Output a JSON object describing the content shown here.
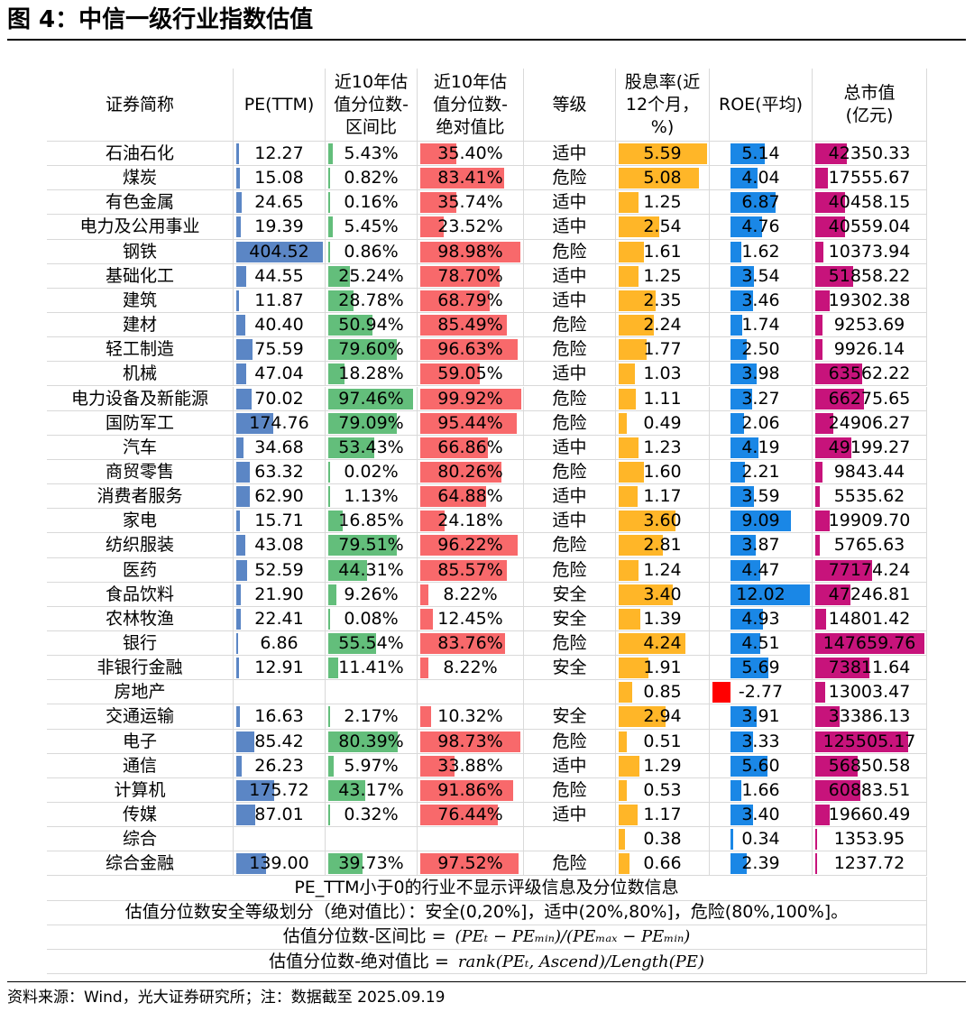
{
  "title": "图 4：中信一级行业指数估值",
  "source": "资料来源：Wind，光大证券研究所；注：数据截至 2025.09.19",
  "colors": {
    "pe": "#5b86c5",
    "pct_range": "#63be7b",
    "pct_abs": "#f8696b",
    "dividend": "#ffb628",
    "roe": "#1a87e6",
    "roe_neg": "#ff0000",
    "mktcap": "#c7137b"
  },
  "headers": [
    "证券简称",
    "PE(TTM)",
    "近10年估值分位数-区间比",
    "近10年估值分位数-绝对值比",
    "等级",
    "股息率(近12个月，%)",
    "ROE(平均)",
    "总市值(亿元)"
  ],
  "rows": [
    {
      "name": "石油石化",
      "pe": "12.27",
      "pe_v": 12.27,
      "r1": "5.43%",
      "r1_v": 5.43,
      "r2": "35.40%",
      "r2_v": 35.4,
      "grade": "适中",
      "div": "5.59",
      "div_v": 5.59,
      "roe": "5.14",
      "roe_v": 5.14,
      "cap": "42350.33",
      "cap_v": 42350.33
    },
    {
      "name": "煤炭",
      "pe": "15.08",
      "pe_v": 15.08,
      "r1": "0.82%",
      "r1_v": 0.82,
      "r2": "83.41%",
      "r2_v": 83.41,
      "grade": "危险",
      "div": "5.08",
      "div_v": 5.08,
      "roe": "4.04",
      "roe_v": 4.04,
      "cap": "17555.67",
      "cap_v": 17555.67
    },
    {
      "name": "有色金属",
      "pe": "24.65",
      "pe_v": 24.65,
      "r1": "0.16%",
      "r1_v": 0.16,
      "r2": "35.74%",
      "r2_v": 35.74,
      "grade": "适中",
      "div": "1.25",
      "div_v": 1.25,
      "roe": "6.87",
      "roe_v": 6.87,
      "cap": "40458.15",
      "cap_v": 40458.15
    },
    {
      "name": "电力及公用事业",
      "pe": "19.39",
      "pe_v": 19.39,
      "r1": "5.45%",
      "r1_v": 5.45,
      "r2": "23.52%",
      "r2_v": 23.52,
      "grade": "适中",
      "div": "2.54",
      "div_v": 2.54,
      "roe": "4.76",
      "roe_v": 4.76,
      "cap": "40559.04",
      "cap_v": 40559.04
    },
    {
      "name": "钢铁",
      "pe": "404.52",
      "pe_v": 404.52,
      "r1": "0.86%",
      "r1_v": 0.86,
      "r2": "98.98%",
      "r2_v": 98.98,
      "grade": "危险",
      "div": "1.61",
      "div_v": 1.61,
      "roe": "1.62",
      "roe_v": 1.62,
      "cap": "10373.94",
      "cap_v": 10373.94
    },
    {
      "name": "基础化工",
      "pe": "44.55",
      "pe_v": 44.55,
      "r1": "25.24%",
      "r1_v": 25.24,
      "r2": "78.70%",
      "r2_v": 78.7,
      "grade": "适中",
      "div": "1.25",
      "div_v": 1.25,
      "roe": "3.54",
      "roe_v": 3.54,
      "cap": "51858.22",
      "cap_v": 51858.22
    },
    {
      "name": "建筑",
      "pe": "11.87",
      "pe_v": 11.87,
      "r1": "28.78%",
      "r1_v": 28.78,
      "r2": "68.79%",
      "r2_v": 68.79,
      "grade": "适中",
      "div": "2.35",
      "div_v": 2.35,
      "roe": "3.46",
      "roe_v": 3.46,
      "cap": "19302.38",
      "cap_v": 19302.38
    },
    {
      "name": "建材",
      "pe": "40.40",
      "pe_v": 40.4,
      "r1": "50.94%",
      "r1_v": 50.94,
      "r2": "85.49%",
      "r2_v": 85.49,
      "grade": "危险",
      "div": "2.24",
      "div_v": 2.24,
      "roe": "1.74",
      "roe_v": 1.74,
      "cap": "9253.69",
      "cap_v": 9253.69
    },
    {
      "name": "轻工制造",
      "pe": "75.59",
      "pe_v": 75.59,
      "r1": "79.60%",
      "r1_v": 79.6,
      "r2": "96.63%",
      "r2_v": 96.63,
      "grade": "危险",
      "div": "1.77",
      "div_v": 1.77,
      "roe": "2.50",
      "roe_v": 2.5,
      "cap": "9926.14",
      "cap_v": 9926.14
    },
    {
      "name": "机械",
      "pe": "47.04",
      "pe_v": 47.04,
      "r1": "18.28%",
      "r1_v": 18.28,
      "r2": "59.05%",
      "r2_v": 59.05,
      "grade": "适中",
      "div": "1.03",
      "div_v": 1.03,
      "roe": "3.98",
      "roe_v": 3.98,
      "cap": "63562.22",
      "cap_v": 63562.22
    },
    {
      "name": "电力设备及新能源",
      "pe": "70.02",
      "pe_v": 70.02,
      "r1": "97.46%",
      "r1_v": 97.46,
      "r2": "99.92%",
      "r2_v": 99.92,
      "grade": "危险",
      "div": "1.11",
      "div_v": 1.11,
      "roe": "3.27",
      "roe_v": 3.27,
      "cap": "66275.65",
      "cap_v": 66275.65
    },
    {
      "name": "国防军工",
      "pe": "174.76",
      "pe_v": 174.76,
      "r1": "79.09%",
      "r1_v": 79.09,
      "r2": "95.44%",
      "r2_v": 95.44,
      "grade": "危险",
      "div": "0.49",
      "div_v": 0.49,
      "roe": "2.06",
      "roe_v": 2.06,
      "cap": "24906.27",
      "cap_v": 24906.27
    },
    {
      "name": "汽车",
      "pe": "34.68",
      "pe_v": 34.68,
      "r1": "53.43%",
      "r1_v": 53.43,
      "r2": "66.86%",
      "r2_v": 66.86,
      "grade": "适中",
      "div": "1.23",
      "div_v": 1.23,
      "roe": "4.19",
      "roe_v": 4.19,
      "cap": "49199.27",
      "cap_v": 49199.27
    },
    {
      "name": "商贸零售",
      "pe": "63.32",
      "pe_v": 63.32,
      "r1": "0.02%",
      "r1_v": 0.02,
      "r2": "80.26%",
      "r2_v": 80.26,
      "grade": "危险",
      "div": "1.60",
      "div_v": 1.6,
      "roe": "2.21",
      "roe_v": 2.21,
      "cap": "9843.44",
      "cap_v": 9843.44
    },
    {
      "name": "消费者服务",
      "pe": "62.90",
      "pe_v": 62.9,
      "r1": "1.13%",
      "r1_v": 1.13,
      "r2": "64.88%",
      "r2_v": 64.88,
      "grade": "适中",
      "div": "1.17",
      "div_v": 1.17,
      "roe": "3.59",
      "roe_v": 3.59,
      "cap": "5535.62",
      "cap_v": 5535.62
    },
    {
      "name": "家电",
      "pe": "15.71",
      "pe_v": 15.71,
      "r1": "16.85%",
      "r1_v": 16.85,
      "r2": "24.18%",
      "r2_v": 24.18,
      "grade": "适中",
      "div": "3.60",
      "div_v": 3.6,
      "roe": "9.09",
      "roe_v": 9.09,
      "cap": "19909.70",
      "cap_v": 19909.7
    },
    {
      "name": "纺织服装",
      "pe": "43.08",
      "pe_v": 43.08,
      "r1": "79.51%",
      "r1_v": 79.51,
      "r2": "96.22%",
      "r2_v": 96.22,
      "grade": "危险",
      "div": "2.81",
      "div_v": 2.81,
      "roe": "3.87",
      "roe_v": 3.87,
      "cap": "5765.63",
      "cap_v": 5765.63
    },
    {
      "name": "医药",
      "pe": "52.59",
      "pe_v": 52.59,
      "r1": "44.31%",
      "r1_v": 44.31,
      "r2": "85.57%",
      "r2_v": 85.57,
      "grade": "危险",
      "div": "1.24",
      "div_v": 1.24,
      "roe": "4.47",
      "roe_v": 4.47,
      "cap": "77174.24",
      "cap_v": 77174.24
    },
    {
      "name": "食品饮料",
      "pe": "21.90",
      "pe_v": 21.9,
      "r1": "9.26%",
      "r1_v": 9.26,
      "r2": "8.22%",
      "r2_v": 8.22,
      "grade": "安全",
      "div": "3.40",
      "div_v": 3.4,
      "roe": "12.02",
      "roe_v": 12.02,
      "cap": "47246.81",
      "cap_v": 47246.81
    },
    {
      "name": "农林牧渔",
      "pe": "22.41",
      "pe_v": 22.41,
      "r1": "0.08%",
      "r1_v": 0.08,
      "r2": "12.45%",
      "r2_v": 12.45,
      "grade": "安全",
      "div": "1.39",
      "div_v": 1.39,
      "roe": "4.93",
      "roe_v": 4.93,
      "cap": "14801.42",
      "cap_v": 14801.42
    },
    {
      "name": "银行",
      "pe": "6.86",
      "pe_v": 6.86,
      "r1": "55.54%",
      "r1_v": 55.54,
      "r2": "83.76%",
      "r2_v": 83.76,
      "grade": "危险",
      "div": "4.24",
      "div_v": 4.24,
      "roe": "4.51",
      "roe_v": 4.51,
      "cap": "147659.76",
      "cap_v": 147659.76
    },
    {
      "name": "非银行金融",
      "pe": "12.91",
      "pe_v": 12.91,
      "r1": "11.41%",
      "r1_v": 11.41,
      "r2": "8.22%",
      "r2_v": 8.22,
      "grade": "安全",
      "div": "1.91",
      "div_v": 1.91,
      "roe": "5.69",
      "roe_v": 5.69,
      "cap": "73811.64",
      "cap_v": 73811.64
    },
    {
      "name": "房地产",
      "pe": "",
      "pe_v": 0,
      "r1": "",
      "r1_v": 0,
      "r2": "",
      "r2_v": 0,
      "grade": "",
      "div": "0.85",
      "div_v": 0.85,
      "roe": "-2.77",
      "roe_v": -2.77,
      "cap": "13003.47",
      "cap_v": 13003.47
    },
    {
      "name": "交通运输",
      "pe": "16.63",
      "pe_v": 16.63,
      "r1": "2.17%",
      "r1_v": 2.17,
      "r2": "10.32%",
      "r2_v": 10.32,
      "grade": "安全",
      "div": "2.94",
      "div_v": 2.94,
      "roe": "3.91",
      "roe_v": 3.91,
      "cap": "33386.13",
      "cap_v": 33386.13
    },
    {
      "name": "电子",
      "pe": "85.42",
      "pe_v": 85.42,
      "r1": "80.39%",
      "r1_v": 80.39,
      "r2": "98.73%",
      "r2_v": 98.73,
      "grade": "危险",
      "div": "0.51",
      "div_v": 0.51,
      "roe": "3.33",
      "roe_v": 3.33,
      "cap": "125505.17",
      "cap_v": 125505.17
    },
    {
      "name": "通信",
      "pe": "26.23",
      "pe_v": 26.23,
      "r1": "5.97%",
      "r1_v": 5.97,
      "r2": "33.88%",
      "r2_v": 33.88,
      "grade": "适中",
      "div": "1.29",
      "div_v": 1.29,
      "roe": "5.60",
      "roe_v": 5.6,
      "cap": "56850.58",
      "cap_v": 56850.58
    },
    {
      "name": "计算机",
      "pe": "175.72",
      "pe_v": 175.72,
      "r1": "43.17%",
      "r1_v": 43.17,
      "r2": "91.86%",
      "r2_v": 91.86,
      "grade": "危险",
      "div": "0.53",
      "div_v": 0.53,
      "roe": "1.66",
      "roe_v": 1.66,
      "cap": "60883.51",
      "cap_v": 60883.51
    },
    {
      "name": "传媒",
      "pe": "87.01",
      "pe_v": 87.01,
      "r1": "0.32%",
      "r1_v": 0.32,
      "r2": "76.44%",
      "r2_v": 76.44,
      "grade": "适中",
      "div": "1.17",
      "div_v": 1.17,
      "roe": "3.40",
      "roe_v": 3.4,
      "cap": "19660.49",
      "cap_v": 19660.49
    },
    {
      "name": "综合",
      "pe": "",
      "pe_v": 0,
      "r1": "",
      "r1_v": 0,
      "r2": "",
      "r2_v": 0,
      "grade": "",
      "div": "0.38",
      "div_v": 0.38,
      "roe": "0.34",
      "roe_v": 0.34,
      "cap": "1353.95",
      "cap_v": 1353.95
    },
    {
      "name": "综合金融",
      "pe": "139.00",
      "pe_v": 139.0,
      "r1": "39.73%",
      "r1_v": 39.73,
      "r2": "97.52%",
      "r2_v": 97.52,
      "grade": "危险",
      "div": "0.66",
      "div_v": 0.66,
      "roe": "2.39",
      "roe_v": 2.39,
      "cap": "1237.72",
      "cap_v": 1237.72
    }
  ],
  "notes": [
    {
      "text": "PE_TTM小于0的行业不显示评级信息及分位数信息",
      "formula": ""
    },
    {
      "text": "估值分位数安全等级划分（绝对值比）：安全(0,20%]，适中(20%,80%]，危险(80%,100%]。",
      "formula": ""
    },
    {
      "text": "估值分位数-区间比 =",
      "formula": "(PEₜ − PEₘᵢₙ)/(PEₘₐₓ − PEₘᵢₙ)"
    },
    {
      "text": "估值分位数-绝对值比 =",
      "formula": "rank(PEₜ, Ascend)/Length(PE)"
    }
  ]
}
